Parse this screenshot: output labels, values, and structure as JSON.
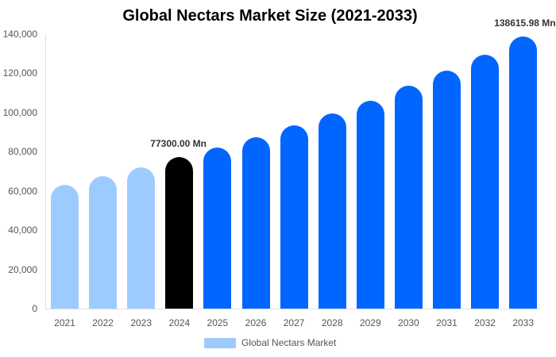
{
  "chart_data": {
    "type": "bar",
    "title": "Global Nectars Market Size (2021-2033)",
    "xlabel": "",
    "ylabel": "",
    "ylim": [
      0,
      140000
    ],
    "yticks": [
      "0",
      "20,000",
      "40,000",
      "60,000",
      "80,000",
      "100,000",
      "120,000",
      "140,000"
    ],
    "categories": [
      "2021",
      "2022",
      "2023",
      "2024",
      "2025",
      "2026",
      "2027",
      "2028",
      "2029",
      "2030",
      "2031",
      "2032",
      "2033"
    ],
    "series": [
      {
        "name": "Global Nectars Market",
        "values": [
          63000,
          67600,
          72100,
          77300,
          82200,
          87600,
          93300,
          99400,
          106000,
          113700,
          121400,
          129500,
          138615.98
        ]
      }
    ],
    "bar_colors": [
      "#9ecbff",
      "#9ecbff",
      "#9ecbff",
      "#000000",
      "#0066ff",
      "#0066ff",
      "#0066ff",
      "#0066ff",
      "#0066ff",
      "#0066ff",
      "#0066ff",
      "#0066ff",
      "#0066ff"
    ],
    "annotations": [
      {
        "category": "2024",
        "text": "77300.00 Mn"
      },
      {
        "category": "2033",
        "text": "138615.98 Mn"
      }
    ],
    "legend": {
      "position": "bottom",
      "entries": [
        {
          "label": "Global Nectars Market",
          "color": "#9ecbff"
        }
      ]
    },
    "grid": false
  }
}
